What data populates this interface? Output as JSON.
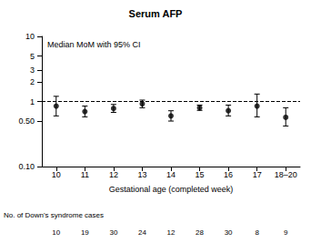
{
  "chart_data": {
    "type": "scatter",
    "title": "Serum AFP",
    "subtitle": "Median MoM with 95% CI",
    "x_label": "Gestational age (completed week)",
    "categories": [
      "10",
      "11",
      "12",
      "13",
      "14",
      "15",
      "16",
      "17",
      "18–20"
    ],
    "values": [
      0.85,
      0.7,
      0.78,
      0.92,
      0.6,
      0.8,
      0.72,
      0.85,
      0.57
    ],
    "ci_low": [
      0.6,
      0.58,
      0.68,
      0.8,
      0.5,
      0.73,
      0.6,
      0.58,
      0.42
    ],
    "ci_high": [
      1.2,
      0.85,
      0.9,
      1.05,
      0.72,
      0.88,
      0.88,
      1.3,
      0.8
    ],
    "reference_line": 1,
    "log": "y",
    "ylim": [
      0.1,
      10
    ],
    "yticks": [
      {
        "value": 0.1,
        "label": "0.10"
      },
      {
        "value": 0.5,
        "label": "0.50"
      },
      1,
      2,
      3,
      5,
      10
    ],
    "grid": false,
    "color": "#000000",
    "marker": "circle",
    "counts_label": "No. of Down's syndrome cases",
    "counts": [
      10,
      19,
      30,
      24,
      12,
      28,
      30,
      8,
      9
    ]
  }
}
